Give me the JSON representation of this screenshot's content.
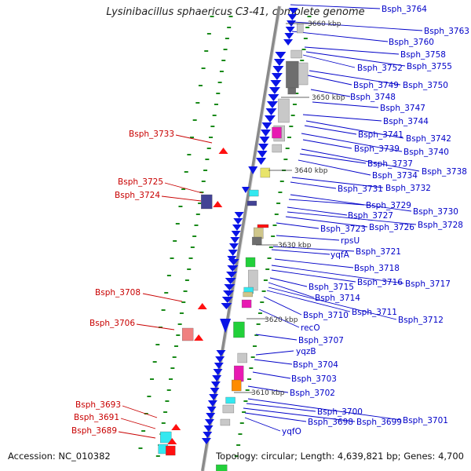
{
  "title": "Lysinibacillus sphaericus C3-41, complete genome",
  "footer": {
    "accession": "Accession: NC_010382",
    "summary": "Topology: circular; Length: 4,639,821 bp; Genes: 4,700"
  },
  "colors": {
    "backbone": "#8a8a8a",
    "forward_gene": "#0a14e6",
    "reverse_gene": "#ff1010",
    "forward_label": "#0000c8",
    "reverse_label": "#c80000",
    "tick": "#1a8a1a",
    "orf_gray": "#c8c8c8",
    "orf_dark": "#6e6e6e",
    "orf_magenta": "#e81ab2",
    "orf_green": "#22d03a",
    "orf_cyan": "#33e8f0",
    "orf_khaki": "#cfc68a",
    "orf_yellow": "#e8e46a",
    "orf_navy": "#434395",
    "orf_salmon": "#f08080",
    "orf_orange": "#ff8c00",
    "orf_bluegray": "#a8b8cc"
  },
  "scale_labels": [
    "3660 kbp",
    "3650 kbp",
    "3640 kbp",
    "3630 kbp",
    "3620 kbp",
    "3610 kbp"
  ],
  "forward_labels": [
    "Bsph_3764",
    "Bsph_3763",
    "Bsph_3760",
    "Bsph_3758",
    "Bsph_3752",
    "Bsph_3755",
    "Bsph_3749",
    "Bsph_3750",
    "Bsph_3748",
    "Bsph_3747",
    "Bsph_3744",
    "Bsph_3741",
    "Bsph_3742",
    "Bsph_3739",
    "Bsph_3740",
    "Bsph_3737",
    "Bsph_3734",
    "Bsph_3738",
    "Bsph_3731",
    "Bsph_3732",
    "Bsph_3729",
    "Bsph_3730",
    "Bsph_3727",
    "Bsph_3726",
    "Bsph_3728",
    "Bsph_3723",
    "rpsU",
    "Bsph_3721",
    "yqfA",
    "Bsph_3718",
    "Bsph_3716",
    "Bsph_3717",
    "Bsph_3715",
    "Bsph_3714",
    "Bsph_3711",
    "Bsph_3710",
    "Bsph_3712",
    "recO",
    "Bsph_3707",
    "yqzB",
    "Bsph_3704",
    "Bsph_3703",
    "Bsph_3702",
    "Bsph_3700",
    "Bsph_3701",
    "Bsph_3698",
    "Bsph_3699",
    "yqfO"
  ],
  "reverse_labels": [
    "Bsph_3733",
    "Bsph_3725",
    "Bsph_3724",
    "Bsph_3708",
    "Bsph_3706",
    "Bsph_3693",
    "Bsph_3691",
    "Bsph_3689"
  ]
}
